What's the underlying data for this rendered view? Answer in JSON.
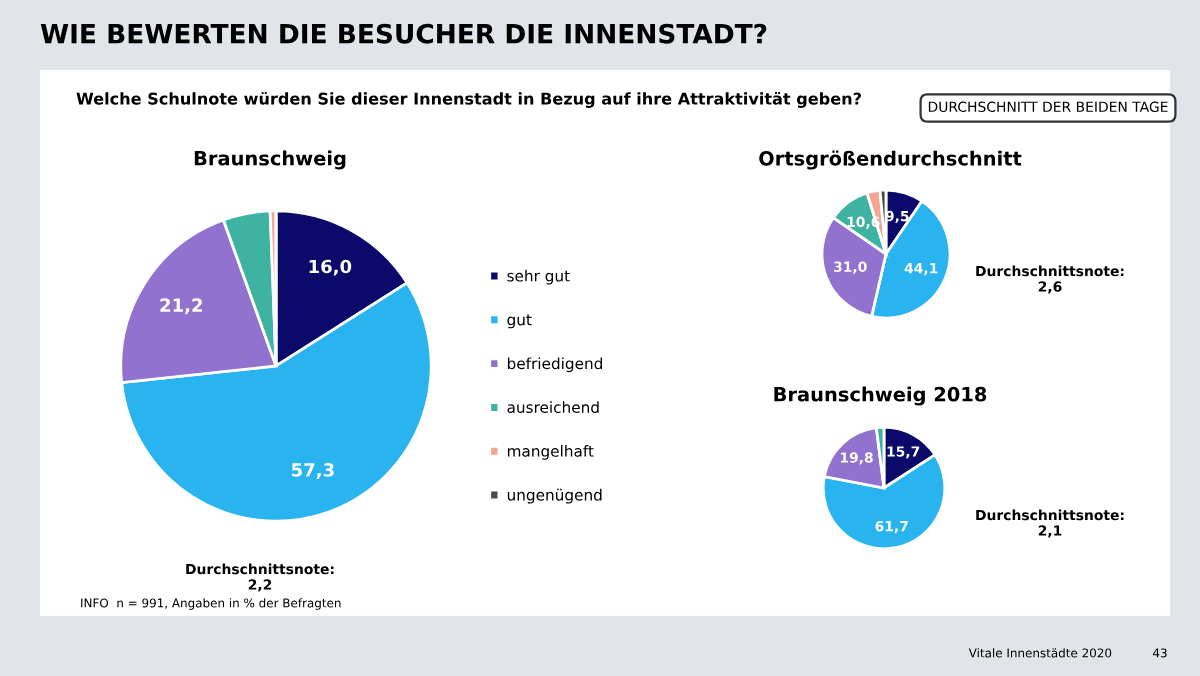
{
  "chart_data": [
    {
      "type": "pie",
      "title": "Braunschweig",
      "categories": [
        "sehr gut",
        "gut",
        "befriedigend",
        "ausreichend",
        "mangelhaft",
        "ungenügend"
      ],
      "values": [
        16.0,
        57.3,
        21.2,
        4.9,
        0.6,
        0.0
      ],
      "value_labels": [
        "16,0",
        "57,3",
        "21,2",
        null,
        null,
        null
      ],
      "colors": [
        "#0b0a6b",
        "#29b4f0",
        "#9272cf",
        "#3fb3a2",
        "#f4a590",
        "#4a4a4a"
      ],
      "legend": "right",
      "annotations": [
        "WIE BEWERTEN DIE BESUCHER DIE INNENSTADT?",
        "Welche Schulnote würden Sie dieser Innenstadt in Bezug auf ihre Attraktivität geben?",
        "DURCHSCHNITT DER BEIDEN TAGE",
        "Durchschnittsnote:\n2,2",
        "INFO  n = 991, Angaben in % der Befragten",
        "Vitale Innenstädte 2020",
        "43"
      ]
    },
    {
      "type": "pie",
      "title": "Ortsgrößendurchschnitt",
      "values": [
        9.5,
        44.1,
        31.0,
        10.6,
        3.3,
        1.5
      ],
      "value_labels": [
        "9,5",
        "44,1",
        "31,0",
        "10,6",
        null,
        null
      ],
      "colors": [
        "#0b0a6b",
        "#29b4f0",
        "#9272cf",
        "#3fb3a2",
        "#f4a590",
        "#4a4a4a"
      ],
      "annotations": [
        "Durchschnittsnote:\n2,6"
      ]
    },
    {
      "type": "pie",
      "title": "Braunschweig 2018",
      "values": [
        15.7,
        61.7,
        19.8,
        2.0,
        null,
        null
      ],
      "value_labels": [
        "15,7",
        "61,7",
        "19,8",
        null,
        null,
        null
      ],
      "colors": [
        "#0b0a6b",
        "#29b4f0",
        "#9272cf",
        "#3fb3a2",
        "#f4a590",
        "#4a4a4a"
      ],
      "annotations": [
        "Durchschnittsnote:\n2,1"
      ]
    }
  ]
}
